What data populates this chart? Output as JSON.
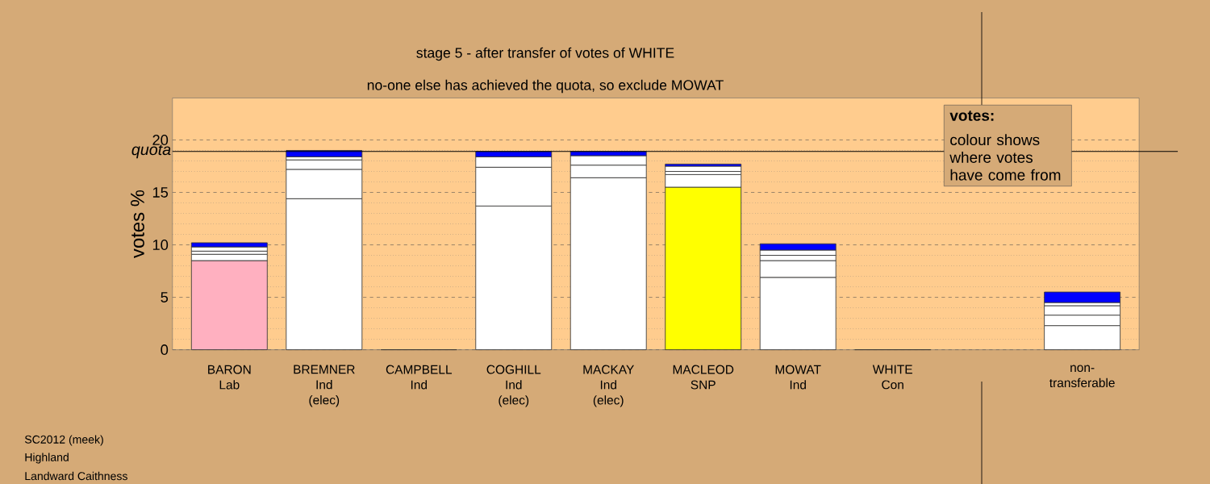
{
  "chart_data": {
    "type": "bar",
    "stacked": true,
    "title": "stage 5 - after transfer of votes of WHITE",
    "subtitle": "no-one else has achieved the quota, so exclude MOWAT",
    "ylabel": "votes %",
    "categories": [
      "BARON\nLab",
      "BREMNER\nInd\n(elec)",
      "CAMPBELL\nInd",
      "COGHILL\nInd\n(elec)",
      "MACKAY\nInd\n(elec)",
      "MACLEOD\nSNP",
      "MOWAT\nInd",
      "WHITE\nCon",
      null,
      "non-\ntransferable"
    ],
    "series": [
      {
        "colors": [
          "#ffb0c0",
          "#ffffff",
          "#333333",
          "#ffffff",
          "#ffffff",
          "#ffff00",
          "#ffffff",
          "#333333",
          "#ffffff",
          "#ffffff"
        ],
        "values": [
          8.5,
          14.4,
          0,
          13.7,
          16.4,
          15.5,
          6.9,
          0,
          null,
          2.3
        ]
      },
      {
        "color": "#ffffff",
        "values": [
          0.6,
          2.8,
          null,
          3.7,
          1.2,
          1.2,
          1.6,
          null,
          null,
          1.0
        ]
      },
      {
        "color": "#ffffff",
        "values": [
          0.3,
          0.9,
          null,
          1.0,
          0.9,
          0.3,
          0.5,
          null,
          null,
          0.9
        ]
      },
      {
        "color": "#ffffff",
        "values": [
          0.4,
          0.3,
          null,
          null,
          null,
          0.5,
          0.5,
          null,
          null,
          0.3
        ]
      },
      {
        "color": "#0000ff",
        "values": [
          0.4,
          0.6,
          null,
          0.5,
          0.4,
          0.2,
          0.6,
          null,
          null,
          1.0
        ]
      }
    ],
    "ylim": [
      0,
      24
    ],
    "yticks": [
      0,
      5,
      10,
      15,
      20
    ],
    "grid": true,
    "ref_lines": [
      {
        "axis": "y",
        "value": 18.9,
        "label": "quota"
      }
    ],
    "annotations": [
      "votes:",
      "colour shows where votes have come from",
      "SC2012 (meek)",
      "Highland",
      "Landward Caithness"
    ]
  }
}
